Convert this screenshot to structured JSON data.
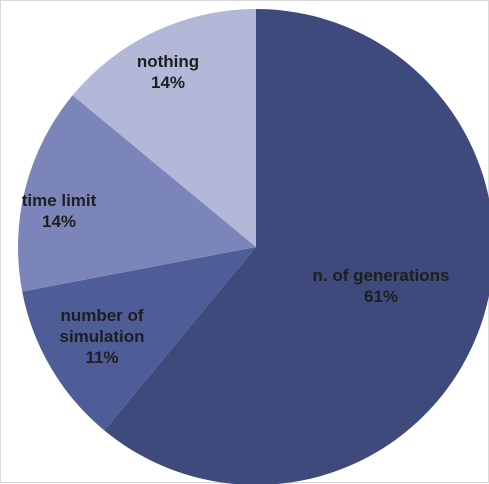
{
  "chart_data": {
    "type": "pie",
    "title": "",
    "slices": [
      {
        "label_lines": [
          "n. of generations"
        ],
        "value": 61,
        "value_label": "61%",
        "color": "#3e4a7c"
      },
      {
        "label_lines": [
          "number of",
          "simulation"
        ],
        "value": 11,
        "value_label": "11%",
        "color": "#4e5d97"
      },
      {
        "label_lines": [
          "time limit"
        ],
        "value": 14,
        "value_label": "14%",
        "color": "#7b85ba"
      },
      {
        "label_lines": [
          "nothing"
        ],
        "value": 14,
        "value_label": "14%",
        "color": "#b3b8d8"
      }
    ],
    "start_angle": "12 o'clock",
    "direction": "clockwise",
    "legend": "none",
    "labels": "inside slices"
  }
}
